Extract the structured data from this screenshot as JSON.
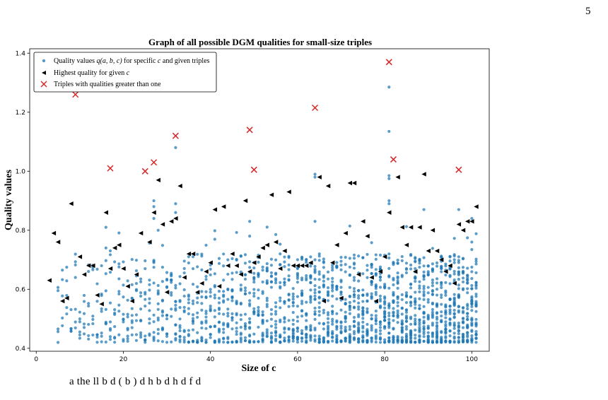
{
  "page": {
    "number": "5",
    "caption_fragment": "a                    the  ll  b   d   (  b  )   d   h                                     b   d   h   d      f   d  "
  },
  "chart_data": {
    "type": "scatter",
    "title": "Graph of all possible DGM qualities for small-size triples",
    "xlabel": "Size of c",
    "ylabel": "Quality values",
    "xlim": [
      -1.5,
      104
    ],
    "ylim": [
      0.39,
      1.415
    ],
    "xticks": [
      0,
      20,
      40,
      60,
      80,
      100
    ],
    "yticks": [
      0.4,
      0.6,
      0.8,
      1.0,
      1.2,
      1.4
    ],
    "ytick_labels": [
      "0.4",
      "0.6",
      "0.8",
      "1.0",
      "1.2",
      "1.4"
    ],
    "grid": false,
    "legend_position": "top-left",
    "colors": {
      "quality": "#1f77b4",
      "highest": "#000000",
      "greater_than_one": "#d62728"
    },
    "legend": [
      {
        "label_before": "Quality values ",
        "label_math": "q(a, b, c)",
        "label_after": " for specific ",
        "label_math2": "c",
        "label_after2": " and given triples",
        "marker": "dot"
      },
      {
        "label_before": "Highest quality for given ",
        "label_math": "c",
        "label_after": "",
        "label_math2": "",
        "label_after2": "",
        "marker": "triangle-left"
      },
      {
        "label_before": "Triples with qualities greater than one",
        "label_math": "",
        "label_after": "",
        "label_math2": "",
        "label_after2": "",
        "marker": "x"
      }
    ],
    "series": [
      {
        "name": "Highest quality for given c",
        "marker": "triangle-left",
        "points": [
          [
            3,
            0.63
          ],
          [
            4,
            0.79
          ],
          [
            5,
            0.76
          ],
          [
            6,
            0.56
          ],
          [
            7,
            0.57
          ],
          [
            8,
            0.89
          ],
          [
            10,
            0.71
          ],
          [
            11,
            0.65
          ],
          [
            12,
            0.68
          ],
          [
            13,
            0.68
          ],
          [
            14,
            0.58
          ],
          [
            15,
            0.55
          ],
          [
            16,
            0.86
          ],
          [
            17,
            0.67
          ],
          [
            18,
            0.74
          ],
          [
            19,
            0.75
          ],
          [
            20,
            0.67
          ],
          [
            21,
            0.61
          ],
          [
            22,
            0.56
          ],
          [
            23,
            0.65
          ],
          [
            24,
            0.79
          ],
          [
            26,
            0.76
          ],
          [
            27,
            0.86
          ],
          [
            28,
            0.97
          ],
          [
            29,
            0.82
          ],
          [
            30,
            0.59
          ],
          [
            31,
            0.83
          ],
          [
            32,
            0.84
          ],
          [
            33,
            0.95
          ],
          [
            34,
            0.64
          ],
          [
            35,
            0.72
          ],
          [
            36,
            0.72
          ],
          [
            37,
            0.59
          ],
          [
            38,
            0.62
          ],
          [
            39,
            0.66
          ],
          [
            40,
            0.69
          ],
          [
            41,
            0.87
          ],
          [
            42,
            0.61
          ],
          [
            43,
            0.88
          ],
          [
            44,
            0.68
          ],
          [
            45,
            0.72
          ],
          [
            46,
            0.68
          ],
          [
            47,
            0.65
          ],
          [
            48,
            0.9
          ],
          [
            49,
            0.66
          ],
          [
            50,
            0.69
          ],
          [
            51,
            0.71
          ],
          [
            52,
            0.74
          ],
          [
            53,
            0.75
          ],
          [
            54,
            0.92
          ],
          [
            55,
            0.76
          ],
          [
            56,
            0.67
          ],
          [
            57,
            0.73
          ],
          [
            58,
            0.93
          ],
          [
            59,
            0.68
          ],
          [
            60,
            0.68
          ],
          [
            61,
            0.68
          ],
          [
            62,
            0.68
          ],
          [
            63,
            0.69
          ],
          [
            65,
            0.98
          ],
          [
            66,
            0.56
          ],
          [
            67,
            0.95
          ],
          [
            68,
            0.69
          ],
          [
            69,
            0.75
          ],
          [
            70,
            0.57
          ],
          [
            71,
            0.79
          ],
          [
            72,
            0.96
          ],
          [
            73,
            0.96
          ],
          [
            74,
            0.65
          ],
          [
            75,
            0.83
          ],
          [
            76,
            0.78
          ],
          [
            77,
            0.64
          ],
          [
            78,
            0.56
          ],
          [
            79,
            0.66
          ],
          [
            80,
            0.71
          ],
          [
            81,
            0.86
          ],
          [
            83,
            0.98
          ],
          [
            84,
            0.81
          ],
          [
            85,
            0.75
          ],
          [
            86,
            0.81
          ],
          [
            87,
            0.66
          ],
          [
            88,
            0.81
          ],
          [
            89,
            0.99
          ],
          [
            90,
            0.73
          ],
          [
            91,
            0.8
          ],
          [
            92,
            0.73
          ],
          [
            93,
            0.7
          ],
          [
            94,
            0.66
          ],
          [
            95,
            0.68
          ],
          [
            96,
            0.62
          ],
          [
            97,
            0.82
          ],
          [
            98,
            0.8
          ],
          [
            99,
            0.83
          ],
          [
            100,
            0.83
          ],
          [
            101,
            0.88
          ]
        ]
      },
      {
        "name": "Triples with qualities greater than one",
        "marker": "x",
        "points": [
          [
            9,
            1.26
          ],
          [
            17,
            1.01
          ],
          [
            25,
            1.0
          ],
          [
            27,
            1.03
          ],
          [
            32,
            1.12
          ],
          [
            49,
            1.14
          ],
          [
            50,
            1.005
          ],
          [
            64,
            1.215
          ],
          [
            81,
            1.37
          ],
          [
            82,
            1.04
          ],
          [
            97,
            1.005
          ]
        ]
      },
      {
        "name": "Quality values q(a, b, c) for specific c and given triples",
        "marker": "dot",
        "generated": true,
        "seed": 7,
        "points_per_c": "3 + 0.3*c",
        "value_range": [
          0.42,
          0.9
        ],
        "outliers": [
          [
            9,
            0.64
          ],
          [
            16,
            0.81
          ],
          [
            16,
            0.74
          ],
          [
            17,
            0.73
          ],
          [
            27,
            0.9
          ],
          [
            27,
            0.88
          ],
          [
            27,
            0.84
          ],
          [
            28,
            0.8
          ],
          [
            32,
            1.08
          ],
          [
            32,
            0.89
          ],
          [
            32,
            0.86
          ],
          [
            49,
            0.83
          ],
          [
            49,
            0.78
          ],
          [
            64,
            0.99
          ],
          [
            64,
            0.98
          ],
          [
            64,
            0.83
          ],
          [
            81,
            1.285
          ],
          [
            81,
            1.135
          ],
          [
            81,
            0.985
          ],
          [
            81,
            0.975
          ],
          [
            81,
            0.9
          ],
          [
            81,
            0.89
          ],
          [
            89,
            0.87
          ],
          [
            97,
            0.87
          ],
          [
            100,
            0.84
          ],
          [
            100,
            0.76
          ]
        ]
      }
    ]
  }
}
